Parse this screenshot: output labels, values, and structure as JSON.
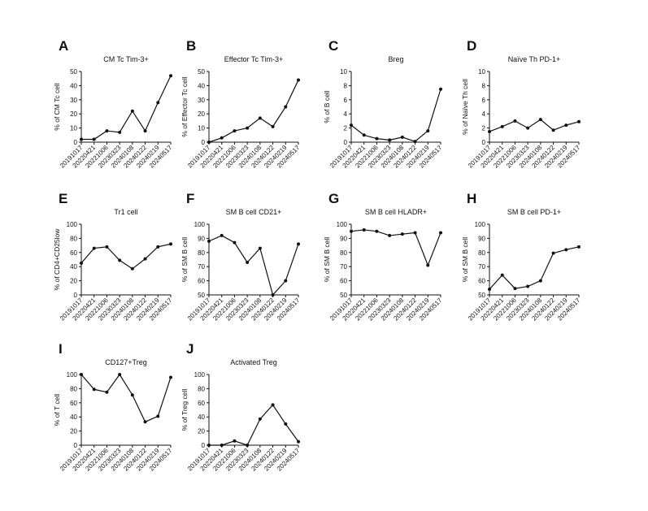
{
  "chart_data": [
    {
      "type": "line",
      "label": "A",
      "title": "CM Tc Tim-3+",
      "y_label": "% of CM Tc cell",
      "categories": [
        "20191017",
        "20220421",
        "20221006",
        "20230323",
        "20240108",
        "20240122",
        "20240219",
        "20240517"
      ],
      "values": [
        2,
        2,
        8,
        7,
        22,
        8,
        28,
        47
      ],
      "ylim": [
        0,
        50
      ],
      "yticks": [
        0,
        10,
        20,
        30,
        40,
        50
      ],
      "color": "#111111"
    },
    {
      "type": "line",
      "label": "B",
      "title": "Effector Tc Tim-3+",
      "y_label": "% of Effector Tc cell",
      "categories": [
        "20191017",
        "20220421",
        "20221006",
        "20230323",
        "20240108",
        "20240122",
        "20240219",
        "20240517"
      ],
      "values": [
        0,
        3,
        8,
        10,
        17,
        11,
        25,
        44
      ],
      "ylim": [
        0,
        50
      ],
      "yticks": [
        0,
        10,
        20,
        30,
        40,
        50
      ],
      "color": "#111111"
    },
    {
      "type": "line",
      "label": "C",
      "title": "Breg",
      "y_label": "% of B cell",
      "categories": [
        "20191017",
        "20220421",
        "20221006",
        "20230323",
        "20240108",
        "20240122",
        "20240219",
        "20240517"
      ],
      "values": [
        2.4,
        1,
        0.5,
        0.3,
        0.7,
        0.1,
        1.6,
        7.5
      ],
      "ylim": [
        0,
        10
      ],
      "yticks": [
        0,
        2,
        4,
        6,
        8,
        10
      ],
      "color": "#111111"
    },
    {
      "type": "line",
      "label": "D",
      "title": "Naïve Th PD-1+",
      "y_label": "% of Naïve Th cell",
      "categories": [
        "20191017",
        "20220421",
        "20221006",
        "20230323",
        "20240108",
        "20240122",
        "20240219",
        "20240517"
      ],
      "values": [
        1.5,
        2.2,
        3.0,
        2.0,
        3.2,
        1.7,
        2.4,
        2.9
      ],
      "ylim": [
        0,
        10
      ],
      "yticks": [
        0,
        2,
        4,
        6,
        8,
        10
      ],
      "color": "#111111"
    },
    {
      "type": "line",
      "label": "E",
      "title": "Tr1 cell",
      "y_label": "% of CD4+CD25low",
      "categories": [
        "20191017",
        "20220421",
        "20221006",
        "20230323",
        "20240108",
        "20240122",
        "20240219",
        "20240517"
      ],
      "values": [
        45,
        66,
        68,
        49,
        37,
        51,
        68,
        72
      ],
      "ylim": [
        0,
        100
      ],
      "yticks": [
        0,
        20,
        40,
        60,
        80,
        100
      ],
      "color": "#111111"
    },
    {
      "type": "line",
      "label": "F",
      "title": "SM B cell CD21+",
      "y_label": "% of SM B cell",
      "categories": [
        "20191017",
        "20220421",
        "20221006",
        "20230323",
        "20240108",
        "20240122",
        "20240219",
        "20240517"
      ],
      "values": [
        88,
        92,
        87,
        73,
        83,
        50,
        60,
        86
      ],
      "ylim": [
        50,
        100
      ],
      "yticks": [
        50,
        60,
        70,
        80,
        90,
        100
      ],
      "color": "#111111"
    },
    {
      "type": "line",
      "label": "G",
      "title": "SM B cell HLADR+",
      "y_label": "% of SM B cell",
      "categories": [
        "20191017",
        "20220421",
        "20221006",
        "20230323",
        "20240108",
        "20240122",
        "20240219",
        "20240517"
      ],
      "values": [
        95,
        96,
        95,
        92,
        93,
        94,
        71,
        94
      ],
      "ylim": [
        50,
        100
      ],
      "yticks": [
        50,
        60,
        70,
        80,
        90,
        100
      ],
      "color": "#111111"
    },
    {
      "type": "line",
      "label": "H",
      "title": "SM B cell PD-1+",
      "y_label": "% of SM B cell",
      "categories": [
        "20191017",
        "20220421",
        "20221006",
        "20230323",
        "20240108",
        "20240122",
        "20240219",
        "20240517"
      ],
      "values": [
        54,
        64,
        54.5,
        56,
        60,
        79.5,
        82,
        84
      ],
      "ylim": [
        50,
        100
      ],
      "yticks": [
        50,
        60,
        70,
        80,
        90,
        100
      ],
      "color": "#111111"
    },
    {
      "type": "line",
      "label": "I",
      "title": "CD127+Treg",
      "y_label": "% of T cell",
      "categories": [
        "20191017",
        "20220421",
        "20221006",
        "20230323",
        "20240108",
        "20240122",
        "20240219",
        "20240517"
      ],
      "values": [
        100,
        79,
        75,
        100,
        71,
        33,
        41,
        96
      ],
      "ylim": [
        0,
        100
      ],
      "yticks": [
        0,
        20,
        40,
        60,
        80,
        100
      ],
      "color": "#111111"
    },
    {
      "type": "line",
      "label": "J",
      "title": "Activated Treg",
      "y_label": "% of Treg cell",
      "categories": [
        "20191017",
        "20220421",
        "20221006",
        "20230323",
        "20240108",
        "20240122",
        "20240219",
        "20240517"
      ],
      "values": [
        0,
        0,
        6,
        0,
        37,
        57,
        30,
        5
      ],
      "ylim": [
        0,
        100
      ],
      "yticks": [
        0,
        20,
        40,
        60,
        80,
        100
      ],
      "color": "#111111"
    }
  ]
}
